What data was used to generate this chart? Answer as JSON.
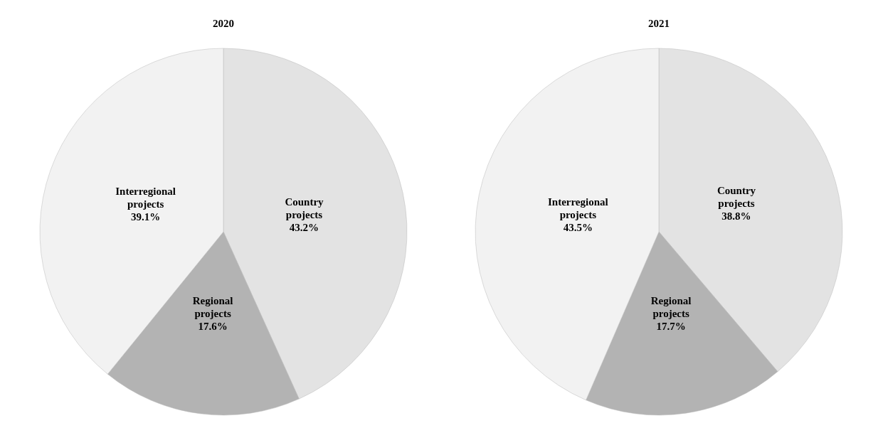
{
  "chart_data": [
    {
      "type": "pie",
      "title": "2020",
      "categories": [
        "Country projects",
        "Regional projects",
        "Interregional projects"
      ],
      "values": [
        43.2,
        17.6,
        39.1
      ],
      "colors": [
        "#e3e3e3",
        "#b3b3b3",
        "#f2f2f2"
      ],
      "value_labels": [
        "43.2%",
        "17.6%",
        "39.1%"
      ]
    },
    {
      "type": "pie",
      "title": "2021",
      "categories": [
        "Country projects",
        "Regional projects",
        "Interregional projects"
      ],
      "values": [
        38.8,
        17.7,
        43.5
      ],
      "colors": [
        "#e3e3e3",
        "#b3b3b3",
        "#f2f2f2"
      ],
      "value_labels": [
        "38.8%",
        "17.7%",
        "43.5%"
      ]
    }
  ]
}
